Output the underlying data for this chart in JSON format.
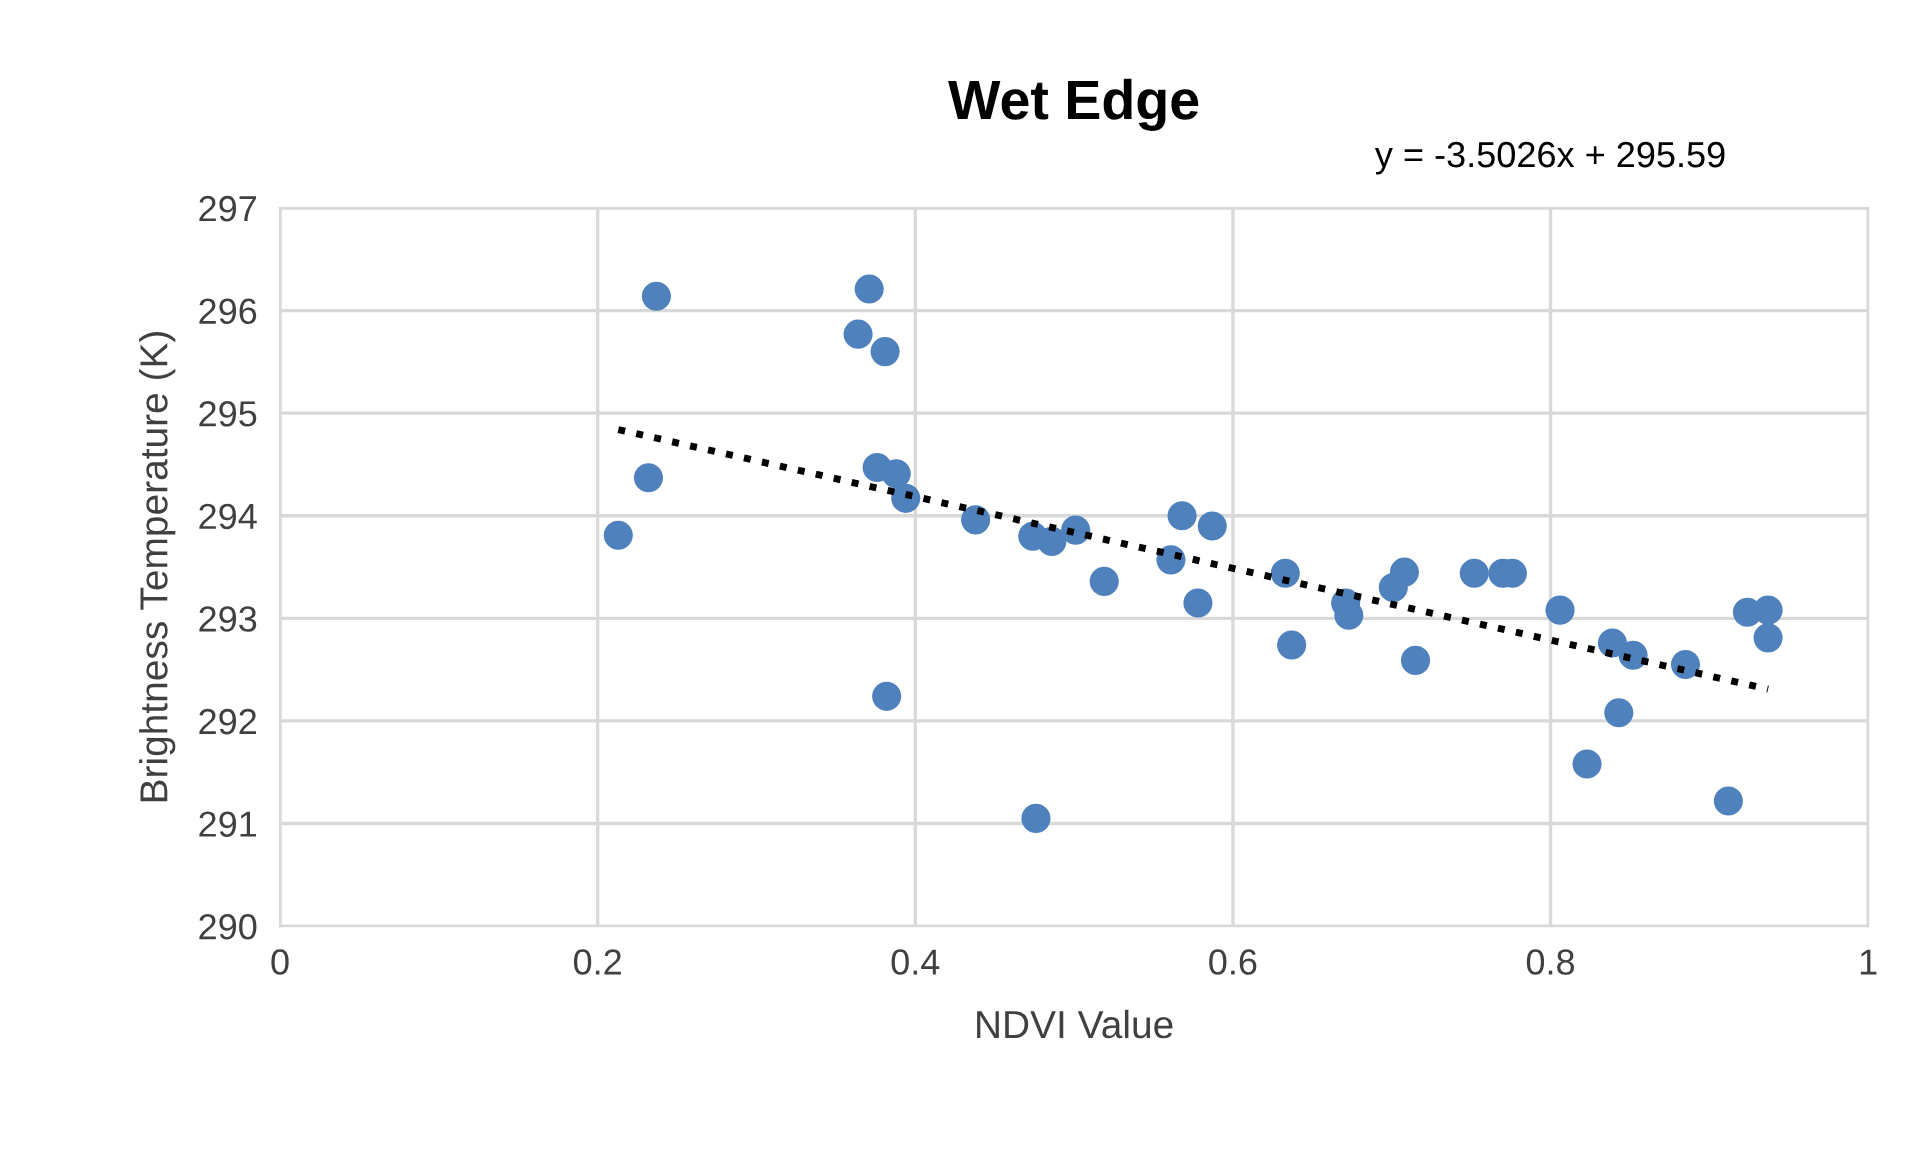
{
  "chart_data": {
    "type": "scatter",
    "title": "Wet Edge",
    "xlabel": "NDVI Value",
    "ylabel": "Brightness Temperature (K)",
    "annotations": [
      "y = -3.5026x + 295.59"
    ],
    "series": [
      {
        "color": "#4f81bd",
        "marker": "circle",
        "x": [
          0.213,
          0.232,
          0.237,
          0.364,
          0.371,
          0.381,
          0.376,
          0.394,
          0.388,
          0.382,
          0.438,
          0.474,
          0.476,
          0.486,
          0.501,
          0.519,
          0.561,
          0.568,
          0.578,
          0.587,
          0.633,
          0.637,
          0.671,
          0.673,
          0.701,
          0.708,
          0.715,
          0.752,
          0.77,
          0.776,
          0.806,
          0.823,
          0.839,
          0.843,
          0.852,
          0.885,
          0.912,
          0.924,
          0.937,
          0.937
        ],
        "values": [
          293.81,
          294.37,
          296.14,
          295.77,
          296.21,
          295.6,
          294.47,
          294.17,
          294.41,
          292.24,
          293.96,
          293.8,
          291.05,
          293.75,
          293.86,
          293.36,
          293.57,
          294.0,
          293.15,
          293.9,
          293.44,
          292.74,
          293.15,
          293.03,
          293.3,
          293.45,
          292.59,
          293.44,
          293.44,
          293.44,
          293.08,
          291.58,
          292.76,
          292.08,
          292.64,
          292.55,
          291.22,
          293.06,
          293.08,
          292.81
        ]
      },
      {
        "type": "line",
        "color": "#000000",
        "line_style": "dotted",
        "marker": "none",
        "x": [
          0.213,
          0.937
        ],
        "values": [
          294.84,
          292.31
        ]
      }
    ],
    "xlim": [
      0,
      1
    ],
    "xticks": [
      0,
      0.2,
      0.4,
      0.6,
      0.8,
      1
    ],
    "ylim": [
      290,
      297
    ],
    "yticks": [
      290,
      291,
      292,
      293,
      294,
      295,
      296,
      297
    ],
    "grid": true,
    "legend": false
  }
}
